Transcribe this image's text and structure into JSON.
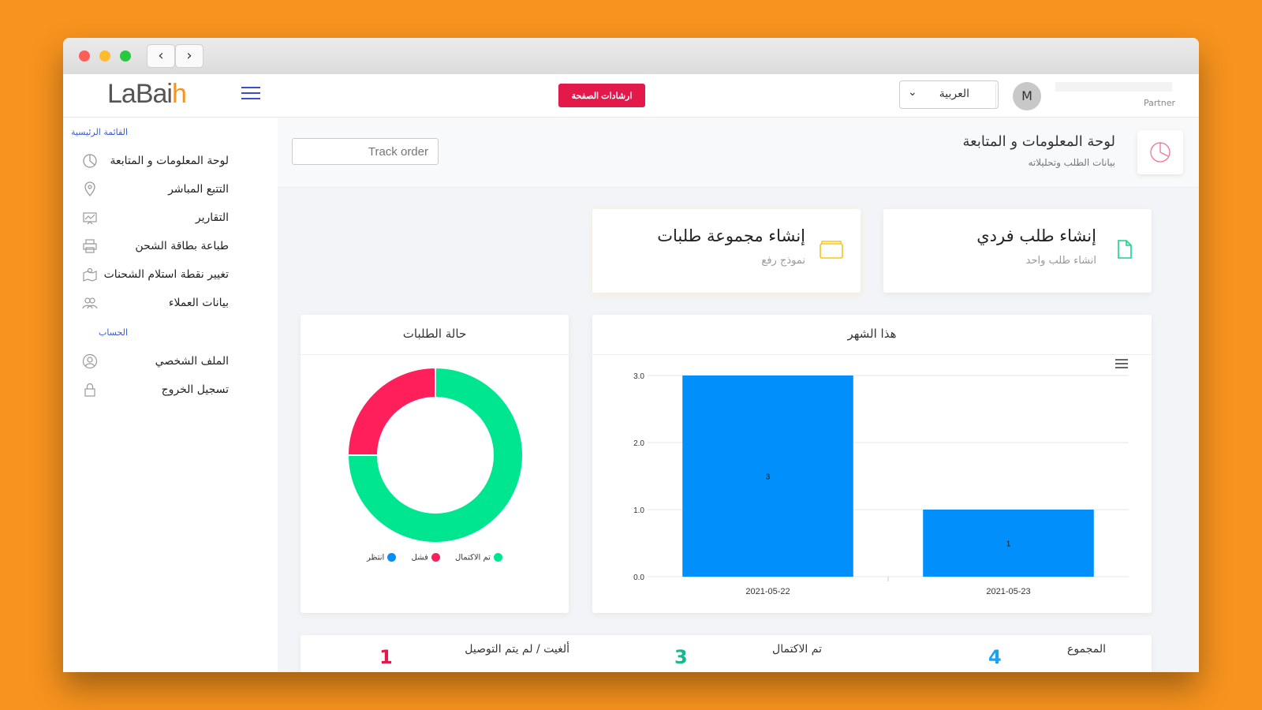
{
  "browser": {
    "back": "‹",
    "forward": "›"
  },
  "topbar": {
    "logo": {
      "part1": "LaBai",
      "part2": "h"
    },
    "guide_button": "ارشادات الصفحة",
    "language": "العربية",
    "avatar_initial": "M",
    "user_role": "Partner"
  },
  "sidebar": {
    "main_title": "القائمة الرئيسية",
    "main_items": [
      {
        "label": "لوحة المعلومات و المتابعة",
        "icon": "pie-chart-icon"
      },
      {
        "label": "التتبع المباشر",
        "icon": "map-pin-icon"
      },
      {
        "label": "التقارير",
        "icon": "report-icon"
      },
      {
        "label": "طباعة بطاقة الشحن",
        "icon": "printer-icon"
      },
      {
        "label": "تغيير نقطة استلام الشحنات",
        "icon": "map-icon"
      },
      {
        "label": "بيانات العملاء",
        "icon": "users-icon"
      }
    ],
    "account_title": "الحساب",
    "account_items": [
      {
        "label": "الملف الشخصي",
        "icon": "user-icon"
      },
      {
        "label": "تسجيل الخروج",
        "icon": "lock-icon"
      }
    ]
  },
  "header": {
    "title": "لوحة المعلومات و المتابعة",
    "subtitle": "بيانات الطلب وتحليلاته",
    "track_placeholder": "Track order"
  },
  "cards": {
    "single": {
      "title": "إنشاء طلب فردي",
      "subtitle": "انشاء طلب واحد"
    },
    "bulk": {
      "title": "إنشاء مجموعة طلبات",
      "subtitle": "نموذج رفع"
    }
  },
  "status_chart": {
    "title": "حالة الطلبات",
    "legend": [
      {
        "label": "تم الاكتمال",
        "color": "#00e58f"
      },
      {
        "label": "فشل",
        "color": "#ff1f5b"
      },
      {
        "label": "انتظر",
        "color": "#008ffb"
      }
    ]
  },
  "month_chart": {
    "title": "هذا الشهر"
  },
  "chart_data": [
    {
      "type": "bar",
      "title": "هذا الشهر",
      "categories": [
        "2021-05-22",
        "2021-05-23"
      ],
      "values": [
        3,
        1
      ],
      "ylim": [
        0,
        3
      ],
      "yticks": [
        "0.0",
        "1.0",
        "2.0",
        "3.0"
      ],
      "color": "#008ffb",
      "grid": true
    },
    {
      "type": "pie",
      "title": "حالة الطلبات",
      "labels": [
        "تم الاكتمال",
        "فشل",
        "انتظر"
      ],
      "values": [
        3,
        1,
        0
      ],
      "colors": [
        "#00e58f",
        "#ff1f5b",
        "#008ffb"
      ]
    }
  ],
  "stats": [
    {
      "label": "المجموع",
      "value": "4",
      "color": "#1da1f2"
    },
    {
      "label": "تم الاكتمال",
      "value": "3",
      "color": "#17b890"
    },
    {
      "label": "ألغيت / لم يتم التوصيل",
      "value": "1",
      "color": "#e3194b"
    }
  ]
}
